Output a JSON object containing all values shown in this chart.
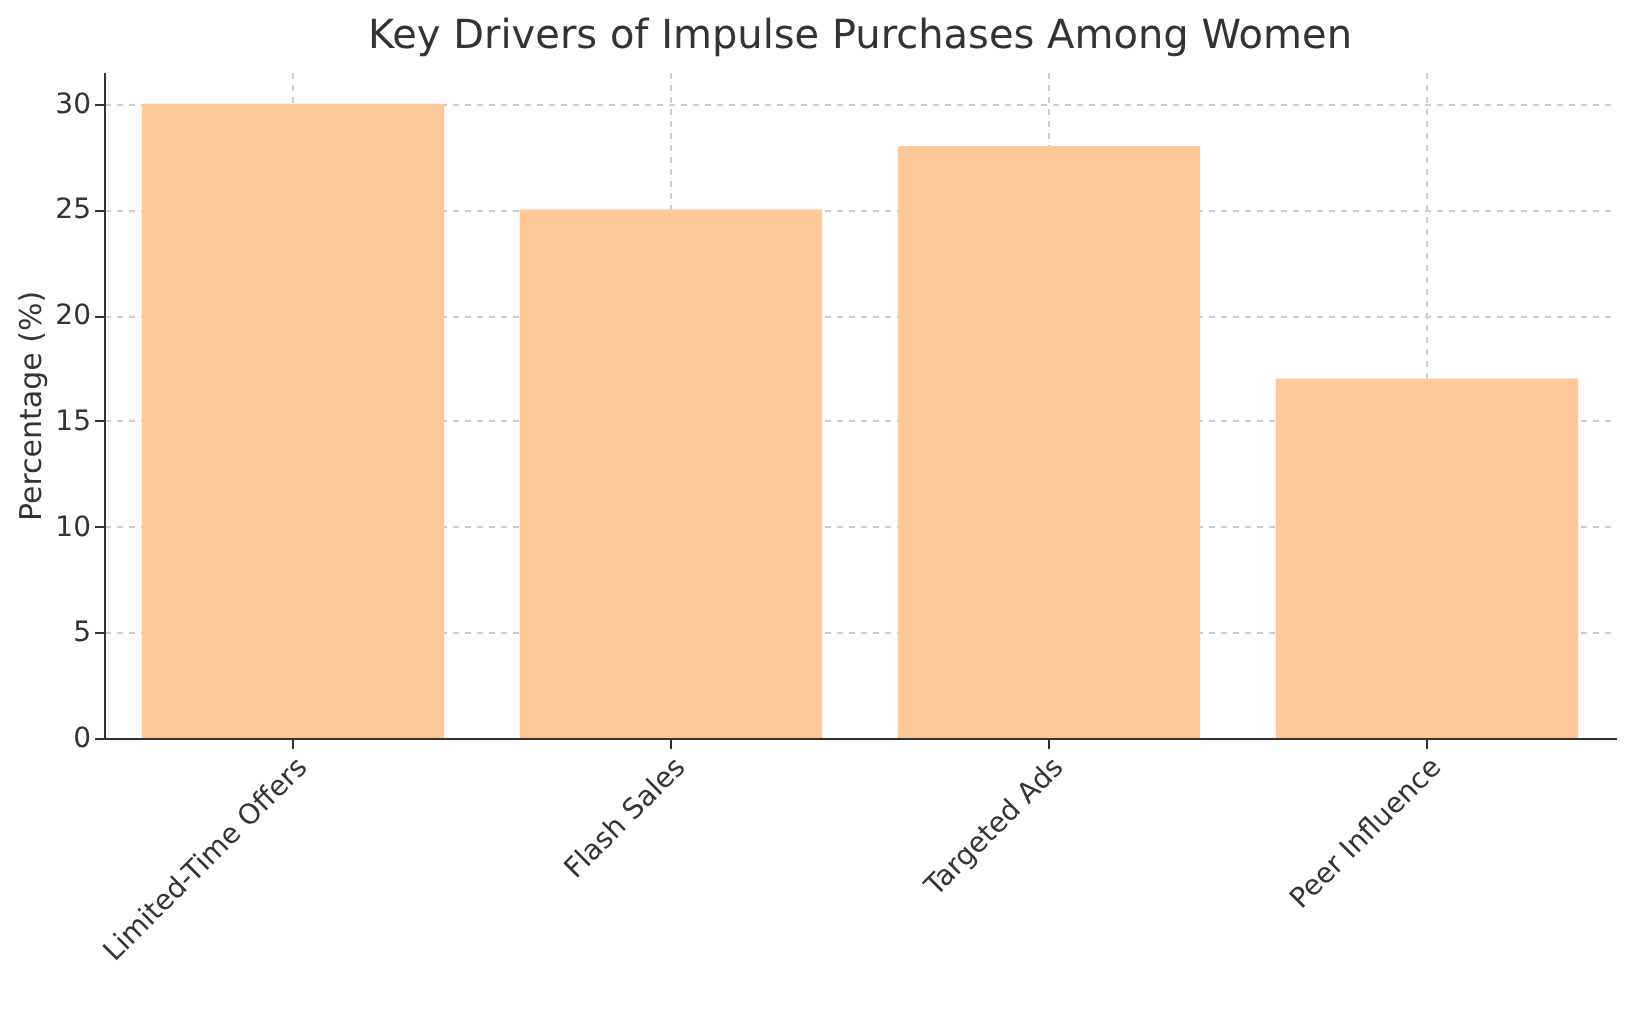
{
  "chart_data": {
    "type": "bar",
    "title": "Key Drivers of Impulse Purchases Among Women",
    "ylabel": "Percentage (%)",
    "categories": [
      "Limited-Time Offers",
      "Flash Sales",
      "Targeted Ads",
      "Peer Influence"
    ],
    "values": [
      30,
      25,
      28,
      17
    ],
    "color": "#fdc998",
    "ylim": [
      0,
      31.5
    ],
    "yticks": [
      0,
      5,
      10,
      15,
      20,
      25,
      30
    ],
    "grid": true
  }
}
